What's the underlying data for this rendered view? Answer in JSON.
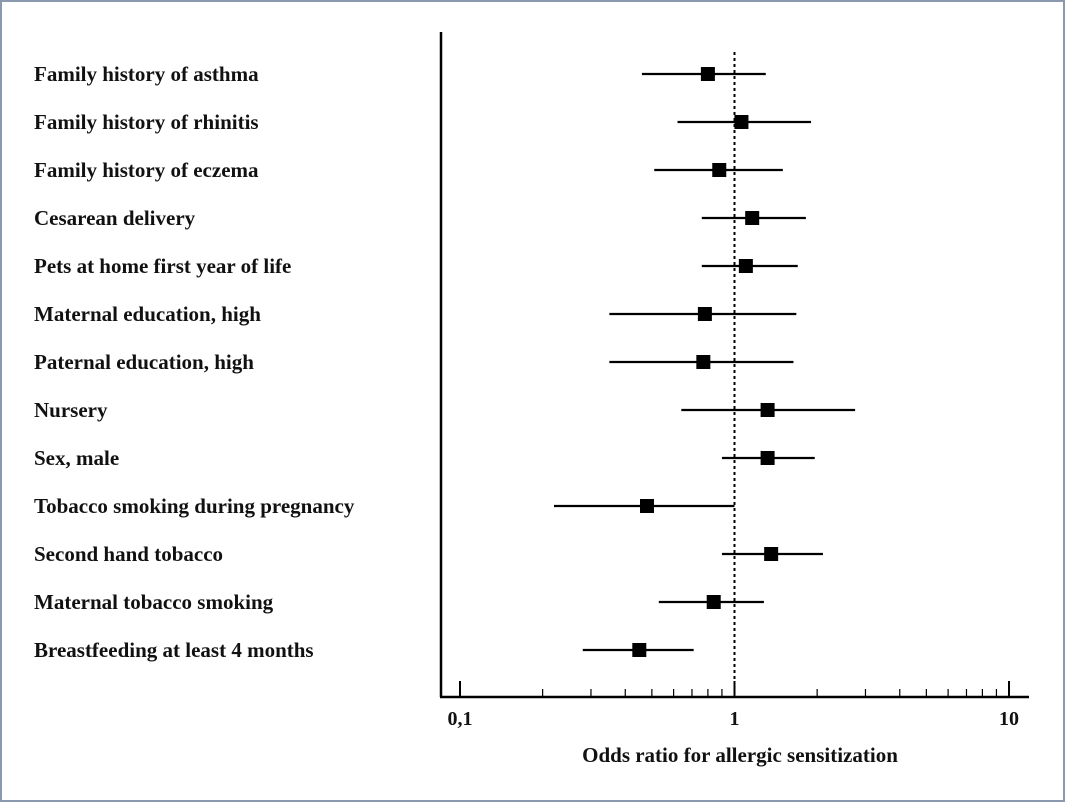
{
  "chart_data": {
    "type": "forest",
    "title": "",
    "xlabel": "Odds ratio for allergic sensitization",
    "ylabel": "",
    "xscale": "log",
    "xlim": [
      0.1,
      10
    ],
    "reference_line": 1,
    "tick_values": [
      0.1,
      1,
      10
    ],
    "tick_labels": [
      "0,1",
      "1",
      "10"
    ],
    "rows": [
      {
        "label": "Family history of asthma",
        "or": 0.8,
        "low": 0.46,
        "high": 1.3
      },
      {
        "label": "Family history of rhinitis",
        "or": 1.06,
        "low": 0.62,
        "high": 1.9
      },
      {
        "label": "Family history of eczema",
        "or": 0.88,
        "low": 0.51,
        "high": 1.5
      },
      {
        "label": "Cesarean delivery",
        "or": 1.16,
        "low": 0.76,
        "high": 1.82
      },
      {
        "label": "Pets at home first year of life",
        "or": 1.1,
        "low": 0.76,
        "high": 1.7
      },
      {
        "label": "Maternal education, high",
        "or": 0.78,
        "low": 0.35,
        "high": 1.68
      },
      {
        "label": "Paternal education, high",
        "or": 0.77,
        "low": 0.35,
        "high": 1.64
      },
      {
        "label": "Nursery",
        "or": 1.32,
        "low": 0.64,
        "high": 2.75
      },
      {
        "label": "Sex, male",
        "or": 1.32,
        "low": 0.9,
        "high": 1.96
      },
      {
        "label": "Tobacco smoking during pregnancy",
        "or": 0.48,
        "low": 0.22,
        "high": 1.0
      },
      {
        "label": "Second hand tobacco",
        "or": 1.36,
        "low": 0.9,
        "high": 2.1
      },
      {
        "label": "Maternal tobacco smoking",
        "or": 0.84,
        "low": 0.53,
        "high": 1.28
      },
      {
        "label": "Breastfeeding at least 4 months",
        "or": 0.45,
        "low": 0.28,
        "high": 0.71
      }
    ]
  }
}
